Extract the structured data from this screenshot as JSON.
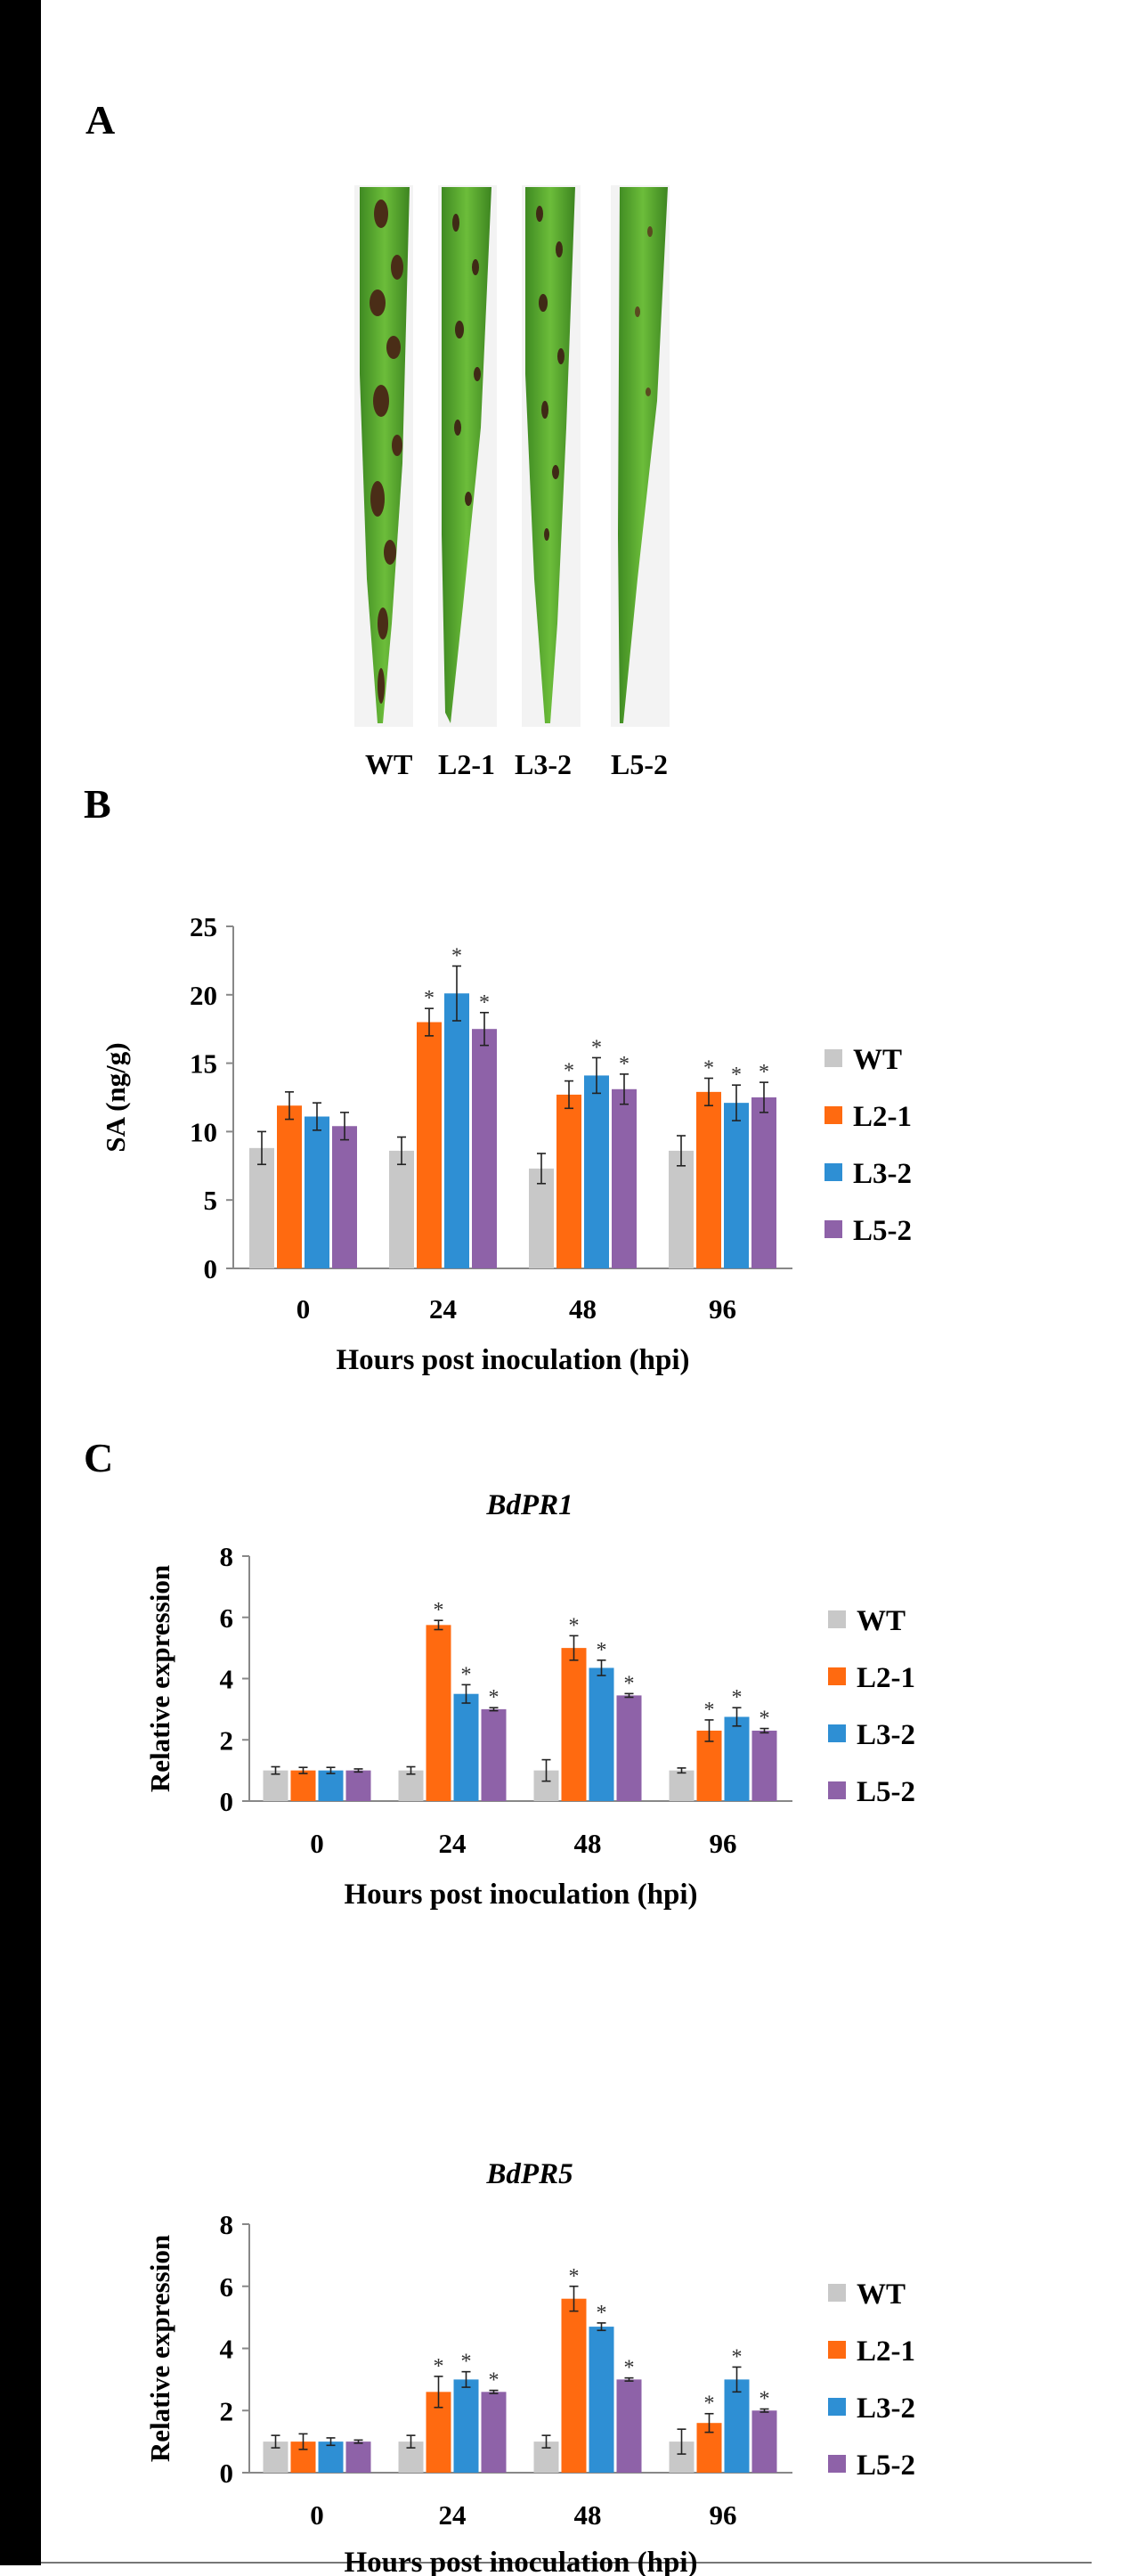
{
  "colors": {
    "WT": "#c8c8c8",
    "L2-1": "#ff6a10",
    "L3-2": "#2e8fd4",
    "L5-2": "#8e62a8"
  },
  "panel_a": {
    "letter": "A",
    "leaf_labels": [
      "WT",
      "L2-1",
      "L3-2",
      "L5-2"
    ]
  },
  "panel_b": {
    "letter": "B"
  },
  "panel_c": {
    "letter": "C"
  },
  "chart_data": [
    {
      "type": "bar",
      "title": "",
      "categories": [
        "0",
        "24",
        "48",
        "96"
      ],
      "xlabel": "Hours  post inoculation  (hpi)",
      "ylabel": "SA (ng/g)",
      "ylim": [
        0,
        25
      ],
      "yticks": [
        0,
        5,
        10,
        15,
        20,
        25
      ],
      "legend": "right",
      "series": [
        {
          "name": "WT",
          "values": [
            8.8,
            8.6,
            7.3,
            8.6
          ],
          "errors": [
            1.2,
            1.0,
            1.1,
            1.1
          ],
          "sig": [
            false,
            false,
            false,
            false
          ]
        },
        {
          "name": "L2-1",
          "values": [
            11.9,
            18.0,
            12.7,
            12.9
          ],
          "errors": [
            1.0,
            1.0,
            1.0,
            1.0
          ],
          "sig": [
            false,
            true,
            true,
            true
          ]
        },
        {
          "name": "L3-2",
          "values": [
            11.1,
            20.1,
            14.1,
            12.1
          ],
          "errors": [
            1.0,
            2.0,
            1.3,
            1.3
          ],
          "sig": [
            false,
            true,
            true,
            true
          ]
        },
        {
          "name": "L5-2",
          "values": [
            10.4,
            17.5,
            13.1,
            12.5
          ],
          "errors": [
            1.0,
            1.2,
            1.1,
            1.1
          ],
          "sig": [
            false,
            true,
            true,
            true
          ]
        }
      ]
    },
    {
      "type": "bar",
      "title": "BdPR1",
      "categories": [
        "0",
        "24",
        "48",
        "96"
      ],
      "xlabel": "Hours  post inoculation  (hpi)",
      "ylabel": "Relative expression",
      "ylim": [
        0,
        8
      ],
      "yticks": [
        0,
        2,
        4,
        6,
        8
      ],
      "legend": "right",
      "series": [
        {
          "name": "WT",
          "values": [
            1.0,
            1.0,
            1.0,
            1.0
          ],
          "errors": [
            0.12,
            0.12,
            0.35,
            0.08
          ],
          "sig": [
            false,
            false,
            false,
            false
          ]
        },
        {
          "name": "L2-1",
          "values": [
            1.0,
            5.75,
            5.0,
            2.3
          ],
          "errors": [
            0.1,
            0.15,
            0.4,
            0.35
          ],
          "sig": [
            false,
            true,
            true,
            true
          ]
        },
        {
          "name": "L3-2",
          "values": [
            1.0,
            3.5,
            4.35,
            2.75
          ],
          "errors": [
            0.1,
            0.3,
            0.25,
            0.3
          ],
          "sig": [
            false,
            true,
            true,
            true
          ]
        },
        {
          "name": "L5-2",
          "values": [
            1.0,
            3.0,
            3.45,
            2.3
          ],
          "errors": [
            0.05,
            0.05,
            0.06,
            0.07
          ],
          "sig": [
            false,
            true,
            true,
            true
          ]
        }
      ]
    },
    {
      "type": "bar",
      "title": "BdPR5",
      "categories": [
        "0",
        "24",
        "48",
        "96"
      ],
      "xlabel": "Hours  post inoculation  (hpi)",
      "ylabel": "Relative expression",
      "ylim": [
        0,
        8
      ],
      "yticks": [
        0,
        2,
        4,
        6,
        8
      ],
      "legend": "right",
      "series": [
        {
          "name": "WT",
          "values": [
            1.0,
            1.0,
            1.0,
            1.0
          ],
          "errors": [
            0.2,
            0.2,
            0.2,
            0.4
          ],
          "sig": [
            false,
            false,
            false,
            false
          ]
        },
        {
          "name": "L2-1",
          "values": [
            1.0,
            2.6,
            5.6,
            1.6
          ],
          "errors": [
            0.25,
            0.5,
            0.4,
            0.3
          ],
          "sig": [
            false,
            true,
            true,
            true
          ]
        },
        {
          "name": "L3-2",
          "values": [
            1.0,
            3.0,
            4.7,
            3.0
          ],
          "errors": [
            0.12,
            0.25,
            0.12,
            0.4
          ],
          "sig": [
            false,
            true,
            true,
            true
          ]
        },
        {
          "name": "L5-2",
          "values": [
            1.0,
            2.6,
            3.0,
            2.0
          ],
          "errors": [
            0.05,
            0.05,
            0.05,
            0.05
          ],
          "sig": [
            false,
            true,
            true,
            true
          ]
        }
      ]
    }
  ]
}
